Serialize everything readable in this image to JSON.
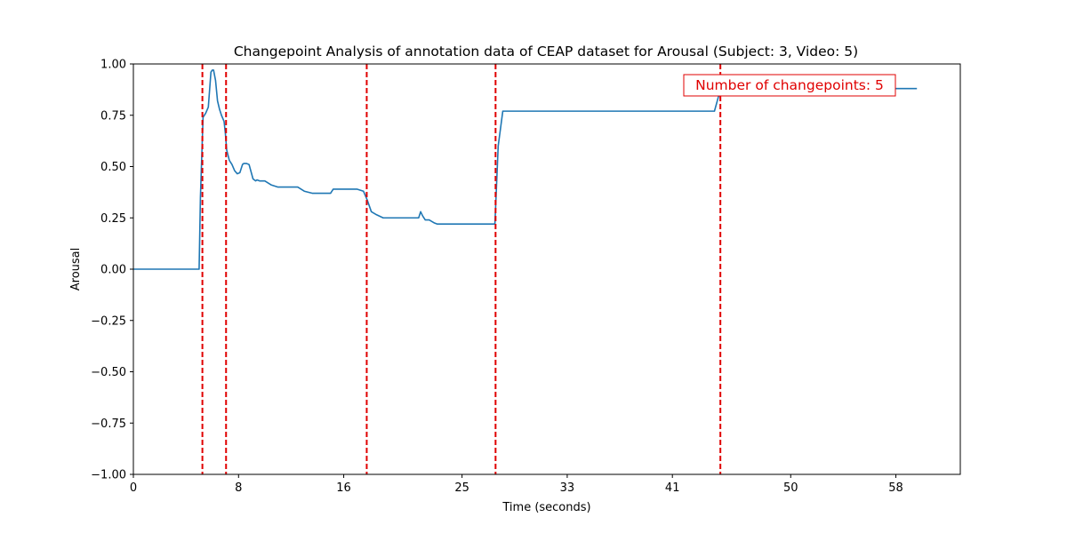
{
  "chart_data": {
    "type": "line",
    "title": "Changepoint Analysis of annotation data of CEAP dataset for Arousal (Subject: 3, Video: 5)",
    "xlabel": "Time (seconds)",
    "ylabel": "Arousal",
    "xlim": [
      0,
      62.9
    ],
    "ylim": [
      -1.0,
      1.0
    ],
    "x_ticks": [
      0,
      8,
      16,
      25,
      33,
      41,
      50,
      58
    ],
    "x_tick_labels": [
      "0",
      "8",
      "16",
      "25",
      "33",
      "41",
      "50",
      "58"
    ],
    "y_ticks": [
      -1.0,
      -0.75,
      -0.5,
      -0.25,
      0.0,
      0.25,
      0.5,
      0.75,
      1.0
    ],
    "y_tick_labels": [
      "−1.00",
      "−0.75",
      "−0.50",
      "−0.25",
      "0.00",
      "0.25",
      "0.50",
      "0.75",
      "1.00"
    ],
    "grid": false,
    "series": [
      {
        "color": "#1f77b4",
        "x": [
          0,
          5.0,
          5.1,
          5.3,
          5.5,
          5.7,
          5.9,
          6.0,
          6.1,
          6.25,
          6.4,
          6.55,
          6.7,
          6.9,
          7.0,
          7.1,
          7.3,
          7.5,
          7.7,
          7.9,
          8.1,
          8.3,
          8.4,
          8.6,
          8.8,
          9.1,
          9.3,
          9.4,
          9.6,
          10.0,
          10.5,
          11.0,
          11.5,
          12.0,
          12.5,
          13.0,
          13.3,
          13.6,
          14.0,
          15.0,
          15.2,
          15.4,
          16.0,
          17.0,
          17.5,
          17.8,
          18.1,
          18.5,
          19.0,
          20.0,
          21.0,
          21.7,
          21.85,
          22.0,
          22.2,
          22.5,
          22.9,
          23.1,
          23.5,
          24.5,
          25.5,
          26.5,
          27.5,
          27.75,
          28.1,
          30.0,
          35.0,
          38.0,
          40.0,
          43.0,
          44.2,
          44.5,
          44.8,
          46.0,
          50.0,
          55.0,
          57.0,
          58.0,
          59.0,
          59.6
        ],
        "y": [
          0.0,
          0.0,
          0.35,
          0.74,
          0.76,
          0.79,
          0.96,
          0.97,
          0.97,
          0.92,
          0.82,
          0.78,
          0.75,
          0.72,
          0.66,
          0.58,
          0.53,
          0.51,
          0.48,
          0.465,
          0.47,
          0.51,
          0.515,
          0.515,
          0.51,
          0.44,
          0.43,
          0.435,
          0.43,
          0.43,
          0.41,
          0.4,
          0.4,
          0.4,
          0.4,
          0.38,
          0.375,
          0.37,
          0.37,
          0.37,
          0.39,
          0.39,
          0.39,
          0.39,
          0.38,
          0.335,
          0.28,
          0.265,
          0.25,
          0.25,
          0.25,
          0.25,
          0.28,
          0.26,
          0.24,
          0.24,
          0.225,
          0.22,
          0.22,
          0.22,
          0.22,
          0.22,
          0.22,
          0.6,
          0.77,
          0.77,
          0.77,
          0.77,
          0.77,
          0.77,
          0.77,
          0.84,
          0.88,
          0.88,
          0.88,
          0.88,
          0.88,
          0.88,
          0.88,
          0.88
        ]
      }
    ],
    "changepoints": [
      5.25,
      7.05,
      17.75,
      27.55,
      44.65
    ],
    "changepoint_color": "#e00000",
    "annotation": "Number of changepoints: 5",
    "annotation_placement": "top-right"
  }
}
